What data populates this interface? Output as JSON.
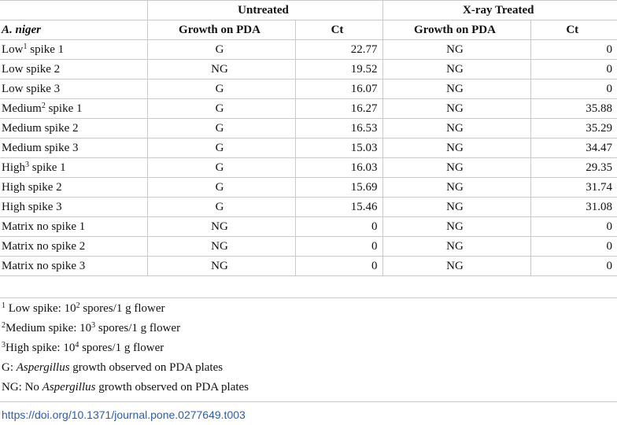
{
  "table": {
    "group_headers": [
      "Untreated",
      "X-ray Treated"
    ],
    "row_header": "A. niger",
    "column_headers": [
      "Growth on PDA",
      "Ct",
      "Growth on PDA",
      "Ct"
    ],
    "rows": [
      {
        "label": "Low",
        "sup": "1",
        "suffix": " spike 1",
        "u_growth": "G",
        "u_ct": "22.77",
        "x_growth": "NG",
        "x_ct": "0"
      },
      {
        "label": "Low spike 2",
        "u_growth": "NG",
        "u_ct": "19.52",
        "x_growth": "NG",
        "x_ct": "0"
      },
      {
        "label": "Low spike 3",
        "u_growth": "G",
        "u_ct": "16.07",
        "x_growth": "NG",
        "x_ct": "0"
      },
      {
        "label": "Medium",
        "sup": "2",
        "suffix": " spike 1",
        "u_growth": "G",
        "u_ct": "16.27",
        "x_growth": "NG",
        "x_ct": "35.88"
      },
      {
        "label": "Medium spike 2",
        "u_growth": "G",
        "u_ct": "16.53",
        "x_growth": "NG",
        "x_ct": "35.29"
      },
      {
        "label": "Medium spike 3",
        "u_growth": "G",
        "u_ct": "15.03",
        "x_growth": "NG",
        "x_ct": "34.47"
      },
      {
        "label": "High",
        "sup": "3",
        "suffix": " spike 1",
        "u_growth": "G",
        "u_ct": "16.03",
        "x_growth": "NG",
        "x_ct": "29.35"
      },
      {
        "label": "High spike 2",
        "u_growth": "G",
        "u_ct": "15.69",
        "x_growth": "NG",
        "x_ct": "31.74"
      },
      {
        "label": "High spike 3",
        "u_growth": "G",
        "u_ct": "15.46",
        "x_growth": "NG",
        "x_ct": "31.08"
      },
      {
        "label": "Matrix no spike 1",
        "u_growth": "NG",
        "u_ct": "0",
        "x_growth": "NG",
        "x_ct": "0"
      },
      {
        "label": "Matrix no spike 2",
        "u_growth": "NG",
        "u_ct": "0",
        "x_growth": "NG",
        "x_ct": "0"
      },
      {
        "label": "Matrix no spike 3",
        "u_growth": "NG",
        "u_ct": "0",
        "x_growth": "NG",
        "x_ct": "0"
      }
    ]
  },
  "footnotes": {
    "n1": {
      "mark": "1",
      "a": " Low spike: 10",
      "exp": "2",
      "b": " spores/1 g flower"
    },
    "n2": {
      "mark": "2",
      "a": "Medium spike: 10",
      "exp": "3",
      "b": " spores/1 g flower"
    },
    "n3": {
      "mark": "3",
      "a": "High spike: 10",
      "exp": "4",
      "b": " spores/1 g flower"
    },
    "g": {
      "a": "G: ",
      "em": "Aspergillus",
      "b": " growth observed on PDA plates"
    },
    "ng": {
      "a": "NG: No ",
      "em": "Aspergillus",
      "b": " growth observed on PDA plates"
    }
  },
  "doi": "https://doi.org/10.1371/journal.pone.0277649.t003"
}
